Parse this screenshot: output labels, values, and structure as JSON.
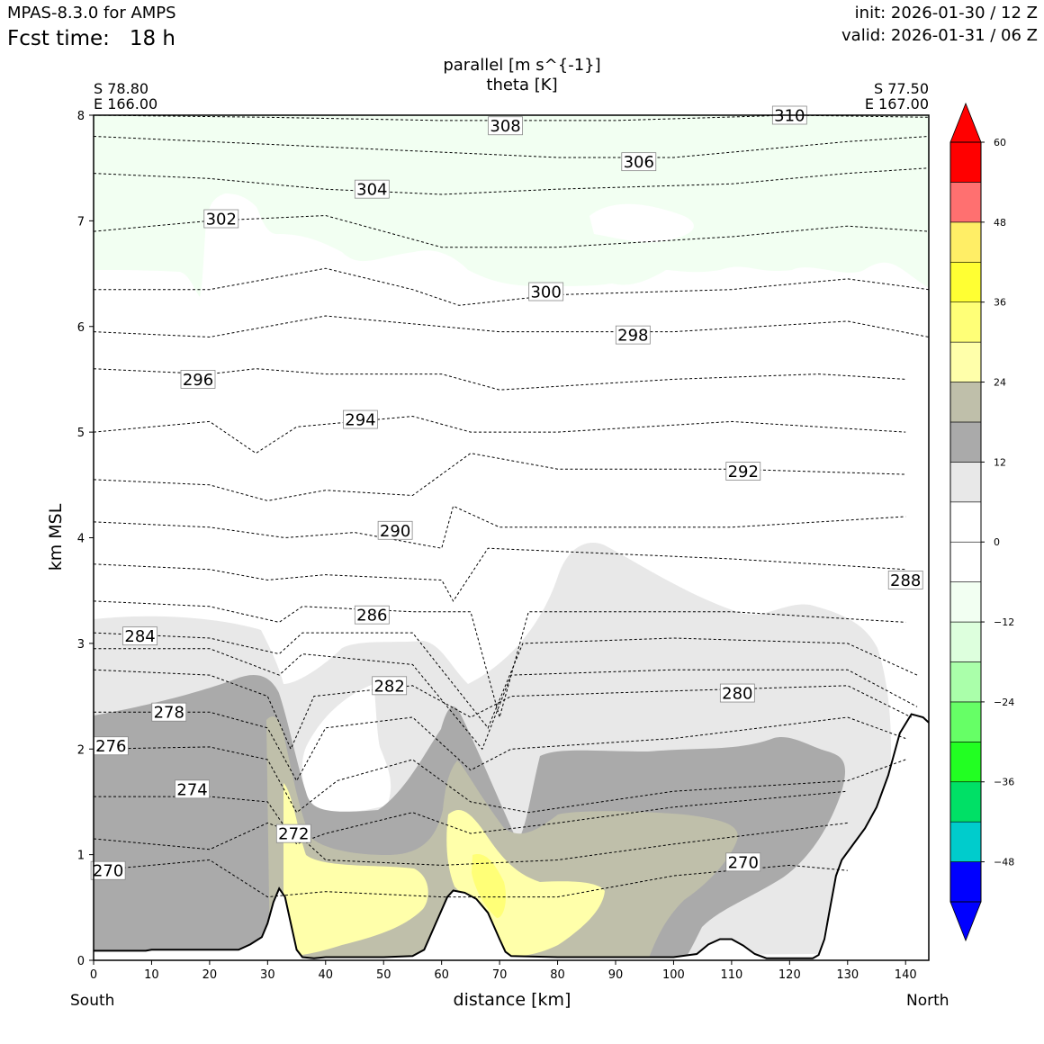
{
  "header": {
    "model": "MPAS-8.3.0 for AMPS",
    "fcst_label": "Fcst time:",
    "fcst_value": "18 h",
    "init": "init: 2026-01-30 / 12 Z",
    "valid": "valid: 2026-01-31 / 06 Z"
  },
  "endpoints": {
    "left_lat": "S 78.80",
    "left_lon": "E 166.00",
    "right_lat": "S 77.50",
    "right_lon": "E 167.00",
    "left_dir": "South",
    "right_dir": "North"
  },
  "chart_data": {
    "type": "cross-section",
    "title": "parallel [m s^{-1}]",
    "subtitle": "theta [K]",
    "xlabel": "distance [km]",
    "ylabel": "km MSL",
    "xlim": [
      0,
      144
    ],
    "ylim": [
      0,
      8
    ],
    "xticks": [
      0,
      10,
      20,
      30,
      40,
      50,
      60,
      70,
      80,
      90,
      100,
      110,
      120,
      130,
      140
    ],
    "yticks": [
      0,
      1,
      2,
      3,
      4,
      5,
      6,
      7,
      8
    ],
    "colorbar": {
      "levels": [
        -54,
        -48,
        -42,
        -36,
        -30,
        -24,
        -18,
        -12,
        -6,
        0,
        6,
        12,
        18,
        24,
        30,
        36,
        42,
        48,
        54,
        60
      ],
      "labels": [
        -48,
        -36,
        -24,
        -12,
        0,
        12,
        24,
        36,
        48,
        60
      ],
      "label_text": [
        "−48",
        "−36",
        "−24",
        "−12",
        "0",
        "12",
        "24",
        "36",
        "48",
        "60"
      ],
      "colors": [
        "#0000ff",
        "#00cccc",
        "#00e066",
        "#22ff22",
        "#66ff66",
        "#aaffaa",
        "#ddffdd",
        "#f2fff2",
        "#ffffff",
        "#ffffff",
        "#e8e8e8",
        "#aaaaaa",
        "#bfbfaa",
        "#ffffaa",
        "#ffff77",
        "#ffff33",
        "#ffee66",
        "#ff7070",
        "#ff0000"
      ],
      "under_color": "#0000ff",
      "over_color": "#ff0000"
    },
    "terrain_km": [
      [
        0,
        0.09
      ],
      [
        9,
        0.09
      ],
      [
        10,
        0.1
      ],
      [
        20,
        0.1
      ],
      [
        25,
        0.1
      ],
      [
        27,
        0.15
      ],
      [
        29,
        0.22
      ],
      [
        30,
        0.35
      ],
      [
        31,
        0.55
      ],
      [
        32,
        0.68
      ],
      [
        33,
        0.6
      ],
      [
        34,
        0.35
      ],
      [
        35,
        0.1
      ],
      [
        36,
        0.03
      ],
      [
        38,
        0.02
      ],
      [
        40,
        0.03
      ],
      [
        50,
        0.03
      ],
      [
        55,
        0.04
      ],
      [
        57,
        0.1
      ],
      [
        59,
        0.35
      ],
      [
        61,
        0.6
      ],
      [
        62,
        0.66
      ],
      [
        64,
        0.64
      ],
      [
        66,
        0.58
      ],
      [
        68,
        0.45
      ],
      [
        70,
        0.2
      ],
      [
        71,
        0.08
      ],
      [
        72,
        0.04
      ],
      [
        80,
        0.03
      ],
      [
        90,
        0.03
      ],
      [
        100,
        0.03
      ],
      [
        104,
        0.06
      ],
      [
        106,
        0.15
      ],
      [
        108,
        0.2
      ],
      [
        110,
        0.2
      ],
      [
        112,
        0.14
      ],
      [
        114,
        0.06
      ],
      [
        116,
        0.02
      ],
      [
        124,
        0.02
      ],
      [
        125,
        0.05
      ],
      [
        126,
        0.2
      ],
      [
        127,
        0.5
      ],
      [
        128,
        0.8
      ],
      [
        129,
        0.95
      ],
      [
        131,
        1.1
      ],
      [
        133,
        1.25
      ],
      [
        135,
        1.45
      ],
      [
        137,
        1.75
      ],
      [
        139,
        2.15
      ],
      [
        141,
        2.33
      ],
      [
        143,
        2.3
      ],
      [
        144,
        2.25
      ]
    ],
    "theta_contour_labels": [
      {
        "value": "270",
        "x": 2.5,
        "y": 0.85
      },
      {
        "value": "270",
        "x": 112,
        "y": 0.93
      },
      {
        "value": "272",
        "x": 34.5,
        "y": 1.2
      },
      {
        "value": "274",
        "x": 17,
        "y": 1.62
      },
      {
        "value": "276",
        "x": 3,
        "y": 2.03
      },
      {
        "value": "278",
        "x": 13,
        "y": 2.35
      },
      {
        "value": "280",
        "x": 111,
        "y": 2.53
      },
      {
        "value": "282",
        "x": 51,
        "y": 2.6
      },
      {
        "value": "284",
        "x": 8,
        "y": 3.07
      },
      {
        "value": "286",
        "x": 48,
        "y": 3.27
      },
      {
        "value": "288",
        "x": 140,
        "y": 3.6
      },
      {
        "value": "290",
        "x": 52,
        "y": 4.07
      },
      {
        "value": "292",
        "x": 112,
        "y": 4.63
      },
      {
        "value": "294",
        "x": 46,
        "y": 5.12
      },
      {
        "value": "296",
        "x": 18,
        "y": 5.5
      },
      {
        "value": "298",
        "x": 93,
        "y": 5.92
      },
      {
        "value": "300",
        "x": 78,
        "y": 6.33
      },
      {
        "value": "302",
        "x": 22,
        "y": 7.02
      },
      {
        "value": "304",
        "x": 48,
        "y": 7.3
      },
      {
        "value": "306",
        "x": 94,
        "y": 7.56
      },
      {
        "value": "308",
        "x": 71,
        "y": 7.9
      },
      {
        "value": "310",
        "x": 120,
        "y": 8.0
      }
    ]
  }
}
